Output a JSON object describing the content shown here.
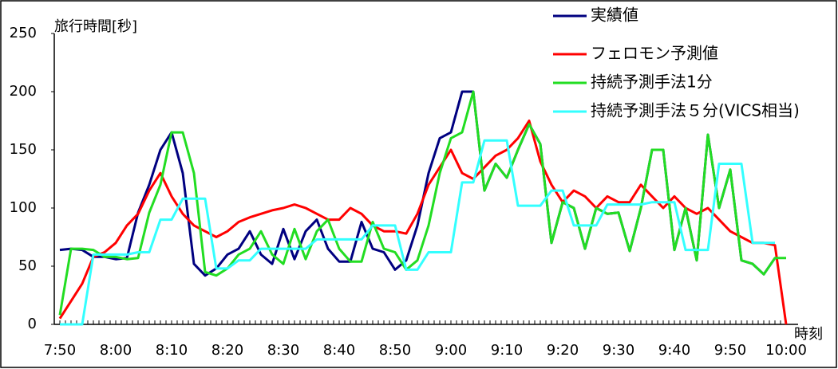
{
  "chart_data": {
    "type": "line",
    "y_label": "旅行時間[秒]",
    "x_label": "時刻",
    "categories": [
      "7:50",
      null,
      null,
      null,
      null,
      "8:00",
      null,
      null,
      null,
      null,
      "8:10",
      null,
      null,
      null,
      null,
      "8:20",
      null,
      null,
      null,
      null,
      "8:30",
      null,
      null,
      null,
      null,
      "8:40",
      null,
      null,
      null,
      null,
      "8:50",
      null,
      null,
      null,
      null,
      "9:00",
      null,
      null,
      null,
      null,
      "9:10",
      null,
      null,
      null,
      null,
      "9:20",
      null,
      null,
      null,
      null,
      "9:30",
      null,
      null,
      null,
      null,
      "9:40",
      null,
      null,
      null,
      null,
      "9:50",
      null,
      null,
      null,
      null,
      "10:00"
    ],
    "ylim": [
      0,
      250
    ],
    "yticks": [
      0,
      50,
      100,
      150,
      200,
      250
    ],
    "grid": false,
    "series": [
      {
        "name": "実績値",
        "color": "#000080",
        "values": [
          64,
          65,
          64,
          58,
          58,
          56,
          57,
          96,
          120,
          150,
          165,
          130,
          52,
          42,
          48,
          60,
          65,
          80,
          60,
          52,
          82,
          56,
          80,
          90,
          65,
          54,
          54,
          88,
          65,
          62,
          47,
          55,
          85,
          130,
          160,
          165,
          200,
          200,
          115,
          138,
          126,
          150,
          172,
          155,
          70,
          105,
          100,
          65,
          100,
          95,
          96,
          63,
          100,
          150,
          150,
          64,
          100,
          55,
          163,
          100,
          133,
          55,
          52,
          43,
          57,
          null
        ]
      },
      {
        "name": "フェロモン予測値",
        "color": "#ff0000",
        "values": [
          5,
          20,
          35,
          58,
          62,
          70,
          85,
          95,
          115,
          130,
          110,
          95,
          85,
          80,
          75,
          80,
          88,
          92,
          95,
          98,
          100,
          103,
          100,
          95,
          90,
          90,
          100,
          95,
          85,
          80,
          80,
          78,
          95,
          120,
          135,
          150,
          130,
          125,
          135,
          145,
          150,
          160,
          175,
          140,
          120,
          105,
          115,
          110,
          100,
          110,
          105,
          105,
          120,
          110,
          100,
          110,
          100,
          95,
          100,
          90,
          80,
          75,
          70,
          70,
          68,
          0
        ]
      },
      {
        "name": "持続予測手法1分",
        "color": "#22dd22",
        "values": [
          8,
          65,
          65,
          64,
          58,
          58,
          56,
          57,
          96,
          120,
          165,
          165,
          130,
          45,
          42,
          48,
          60,
          65,
          80,
          60,
          52,
          82,
          56,
          80,
          90,
          65,
          54,
          54,
          88,
          65,
          62,
          47,
          55,
          85,
          130,
          160,
          165,
          200,
          115,
          138,
          126,
          150,
          172,
          155,
          70,
          105,
          100,
          65,
          100,
          95,
          96,
          63,
          100,
          150,
          150,
          64,
          100,
          55,
          163,
          100,
          133,
          55,
          52,
          43,
          57,
          57
        ]
      },
      {
        "name": "持続予測手法５分(VICS相当)",
        "color": "#33ffff",
        "values": [
          0,
          0,
          0,
          60,
          60,
          60,
          60,
          62,
          62,
          90,
          90,
          108,
          108,
          108,
          48,
          48,
          55,
          55,
          65,
          65,
          65,
          65,
          65,
          73,
          73,
          73,
          73,
          73,
          85,
          85,
          85,
          47,
          47,
          62,
          62,
          62,
          122,
          122,
          158,
          158,
          158,
          102,
          102,
          102,
          115,
          115,
          85,
          85,
          85,
          103,
          103,
          103,
          103,
          105,
          105,
          105,
          64,
          64,
          64,
          138,
          138,
          138,
          70,
          70,
          70,
          null
        ]
      }
    ]
  }
}
